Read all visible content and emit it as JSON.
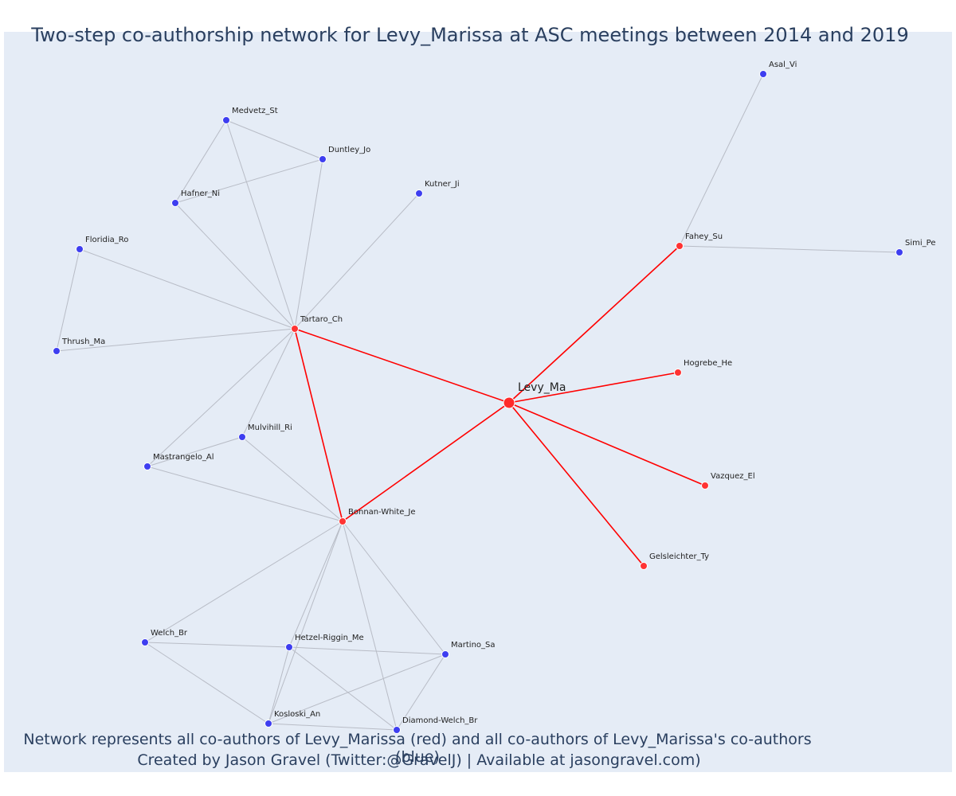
{
  "title": "Two-step co-authorship network for Levy_Marissa at ASC meetings between 2014 and 2019",
  "footer": {
    "line1": "Network represents all co-authors of Levy_Marissa (red) and all co-authors of Levy_Marissa's co-authors (blue)",
    "line2": "Created by Jason Gravel (Twitter:@GravelJ) | Available at jasongravel.com)"
  },
  "colors": {
    "coauthor": "#ff3333",
    "second_step": "#3e3ef0",
    "center": "#ff2a2a",
    "edge_direct": "#ff0000",
    "edge_other": "#b8bcc6"
  },
  "nodes": [
    {
      "id": "Levy_Ma",
      "group": "center"
    },
    {
      "id": "Tartaro_Ch",
      "group": "coauthor"
    },
    {
      "id": "Bonnan-White_Je",
      "group": "coauthor"
    },
    {
      "id": "Fahey_Su",
      "group": "coauthor"
    },
    {
      "id": "Hogrebe_He",
      "group": "coauthor"
    },
    {
      "id": "Vazquez_El",
      "group": "coauthor"
    },
    {
      "id": "Gelsleichter_Ty",
      "group": "coauthor"
    },
    {
      "id": "Asal_Vi",
      "group": "second"
    },
    {
      "id": "Simi_Pe",
      "group": "second"
    },
    {
      "id": "Medvetz_St",
      "group": "second"
    },
    {
      "id": "Duntley_Jo",
      "group": "second"
    },
    {
      "id": "Hafner_Ni",
      "group": "second"
    },
    {
      "id": "Kutner_Ji",
      "group": "second"
    },
    {
      "id": "Floridia_Ro",
      "group": "second"
    },
    {
      "id": "Thrush_Ma",
      "group": "second"
    },
    {
      "id": "Mulvihill_Ri",
      "group": "second"
    },
    {
      "id": "Mastrangelo_Al",
      "group": "second"
    },
    {
      "id": "Welch_Br",
      "group": "second"
    },
    {
      "id": "Hetzel-Riggin_Me",
      "group": "second"
    },
    {
      "id": "Martino_Sa",
      "group": "second"
    },
    {
      "id": "Kosloski_An",
      "group": "second"
    },
    {
      "id": "Diamond-Welch_Br",
      "group": "second"
    }
  ],
  "edges": [
    [
      "Levy_Ma",
      "Tartaro_Ch"
    ],
    [
      "Levy_Ma",
      "Bonnan-White_Je"
    ],
    [
      "Levy_Ma",
      "Fahey_Su"
    ],
    [
      "Levy_Ma",
      "Hogrebe_He"
    ],
    [
      "Levy_Ma",
      "Vazquez_El"
    ],
    [
      "Levy_Ma",
      "Gelsleichter_Ty"
    ],
    [
      "Tartaro_Ch",
      "Bonnan-White_Je"
    ],
    [
      "Fahey_Su",
      "Asal_Vi"
    ],
    [
      "Fahey_Su",
      "Simi_Pe"
    ],
    [
      "Tartaro_Ch",
      "Medvetz_St"
    ],
    [
      "Tartaro_Ch",
      "Duntley_Jo"
    ],
    [
      "Tartaro_Ch",
      "Hafner_Ni"
    ],
    [
      "Tartaro_Ch",
      "Kutner_Ji"
    ],
    [
      "Tartaro_Ch",
      "Floridia_Ro"
    ],
    [
      "Tartaro_Ch",
      "Thrush_Ma"
    ],
    [
      "Tartaro_Ch",
      "Mulvihill_Ri"
    ],
    [
      "Tartaro_Ch",
      "Mastrangelo_Al"
    ],
    [
      "Medvetz_St",
      "Duntley_Jo"
    ],
    [
      "Medvetz_St",
      "Hafner_Ni"
    ],
    [
      "Duntley_Jo",
      "Hafner_Ni"
    ],
    [
      "Floridia_Ro",
      "Thrush_Ma"
    ],
    [
      "Mulvihill_Ri",
      "Mastrangelo_Al"
    ],
    [
      "Mulvihill_Ri",
      "Bonnan-White_Je"
    ],
    [
      "Mastrangelo_Al",
      "Bonnan-White_Je"
    ],
    [
      "Bonnan-White_Je",
      "Welch_Br"
    ],
    [
      "Bonnan-White_Je",
      "Hetzel-Riggin_Me"
    ],
    [
      "Bonnan-White_Je",
      "Martino_Sa"
    ],
    [
      "Bonnan-White_Je",
      "Kosloski_An"
    ],
    [
      "Bonnan-White_Je",
      "Diamond-Welch_Br"
    ],
    [
      "Welch_Br",
      "Hetzel-Riggin_Me"
    ],
    [
      "Welch_Br",
      "Kosloski_An"
    ],
    [
      "Hetzel-Riggin_Me",
      "Martino_Sa"
    ],
    [
      "Hetzel-Riggin_Me",
      "Kosloski_An"
    ],
    [
      "Hetzel-Riggin_Me",
      "Diamond-Welch_Br"
    ],
    [
      "Martino_Sa",
      "Kosloski_An"
    ],
    [
      "Martino_Sa",
      "Diamond-Welch_Br"
    ],
    [
      "Kosloski_An",
      "Diamond-Welch_Br"
    ]
  ]
}
